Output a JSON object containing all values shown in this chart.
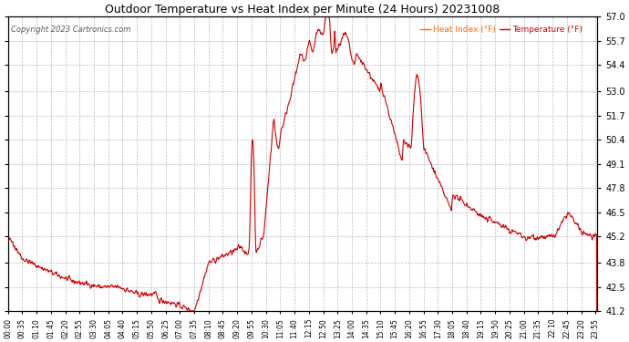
{
  "title": "Outdoor Temperature vs Heat Index per Minute (24 Hours) 20231008",
  "copyright": "Copyright 2023 Cartronics.com",
  "legend_heat": "Heat Index (°F)",
  "legend_temp": "Temperature (°F)",
  "legend_heat_color": "#ff6600",
  "legend_temp_color": "#cc0000",
  "line_color": "#cc0000",
  "background_color": "#ffffff",
  "grid_color": "#bbbbbb",
  "title_color": "#000000",
  "ylim_min": 41.2,
  "ylim_max": 57.0,
  "yticks": [
    41.2,
    42.5,
    43.8,
    45.2,
    46.5,
    47.8,
    49.1,
    50.4,
    51.7,
    53.0,
    54.4,
    55.7,
    57.0
  ],
  "total_minutes": 1440,
  "xtick_interval": 35
}
